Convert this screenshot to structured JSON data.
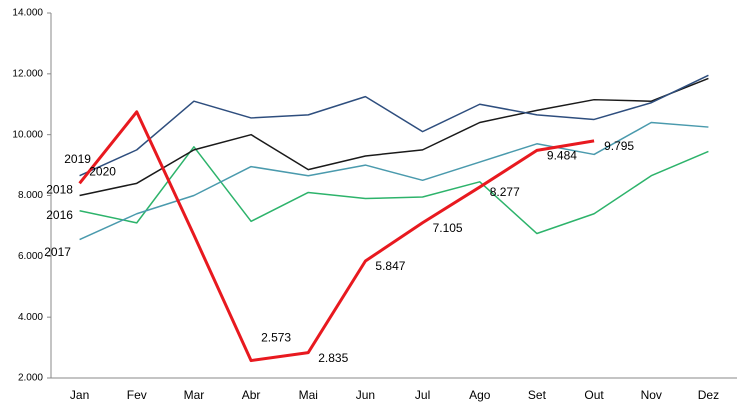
{
  "chart_data": {
    "type": "line",
    "categories": [
      "Jan",
      "Fev",
      "Mar",
      "Abr",
      "Mai",
      "Jun",
      "Jul",
      "Ago",
      "Set",
      "Out",
      "Nov",
      "Dez"
    ],
    "ylim": [
      2000,
      14000
    ],
    "yticks": [
      {
        "value": 2000,
        "label": "2.000"
      },
      {
        "value": 4000,
        "label": "4.000"
      },
      {
        "value": 6000,
        "label": "6.000"
      },
      {
        "value": 8000,
        "label": "8.000"
      },
      {
        "value": 10000,
        "label": "10.000"
      },
      {
        "value": 12000,
        "label": "12.000"
      },
      {
        "value": 14000,
        "label": "14.000"
      }
    ],
    "grid": false,
    "series": [
      {
        "name": "2016",
        "color": "#2db36b",
        "values": [
          7500,
          7100,
          9600,
          7150,
          8100,
          7900,
          7950,
          8450,
          6750,
          7400,
          8650,
          9450
        ]
      },
      {
        "name": "2017",
        "color": "#4a9aad",
        "values": [
          6550,
          7400,
          8000,
          8950,
          8650,
          9000,
          8500,
          9100,
          9700,
          9350,
          10400,
          10250
        ]
      },
      {
        "name": "2018",
        "color": "#1a1a1a",
        "values": [
          8000,
          8400,
          9500,
          10000,
          8850,
          9300,
          9500,
          10400,
          10800,
          11150,
          11100,
          11850
        ]
      },
      {
        "name": "2019",
        "color": "#2e4e7e",
        "values": [
          8650,
          9500,
          11100,
          10550,
          10650,
          11250,
          10100,
          11000,
          10650,
          10500,
          11050,
          11950
        ]
      },
      {
        "name": "2020",
        "color": "#e8191f",
        "values": [
          8400,
          10750,
          6700,
          2573,
          2835,
          5847,
          7105,
          8277,
          9484,
          9795,
          null,
          null
        ],
        "value_labels": [
          null,
          null,
          null,
          "2.573",
          "2.835",
          "5.847",
          "7.105",
          "8.277",
          "9.484",
          "9.795",
          null,
          null
        ]
      }
    ]
  }
}
